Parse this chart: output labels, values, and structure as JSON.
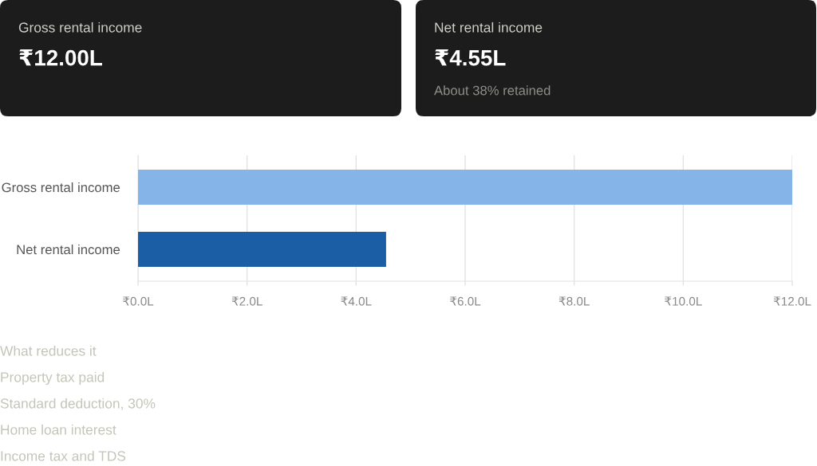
{
  "chart_data": [
    {
      "type": "other",
      "title": "Gross rental income",
      "annotations": [
        "₹12.00L"
      ]
    },
    {
      "type": "other",
      "title": "Net rental income",
      "annotations": [
        "₹4.55L",
        "About 38% retained"
      ]
    },
    {
      "type": "bar",
      "orientation": "horizontal",
      "categories": [
        "Gross rental income",
        "Net rental income"
      ],
      "values": [
        12.0,
        4.55
      ],
      "colors": [
        "#85b5e8",
        "#1b5ea5"
      ],
      "xlim": [
        0,
        12
      ],
      "xticks": [
        {
          "value": 0,
          "label": "₹0.0L"
        },
        {
          "value": 2,
          "label": "₹2.0L"
        },
        {
          "value": 4,
          "label": "₹4.0L"
        },
        {
          "value": 6,
          "label": "₹6.0L"
        },
        {
          "value": 8,
          "label": "₹8.0L"
        },
        {
          "value": 10,
          "label": "₹10.0L"
        },
        {
          "value": 12,
          "label": "₹12.0L"
        }
      ],
      "grid": "x"
    },
    {
      "type": "other",
      "title": "What reduces it",
      "annotations": [
        "Property tax paid",
        "Standard deduction, 30%",
        "Home loan interest",
        "Income tax and TDS"
      ]
    }
  ]
}
